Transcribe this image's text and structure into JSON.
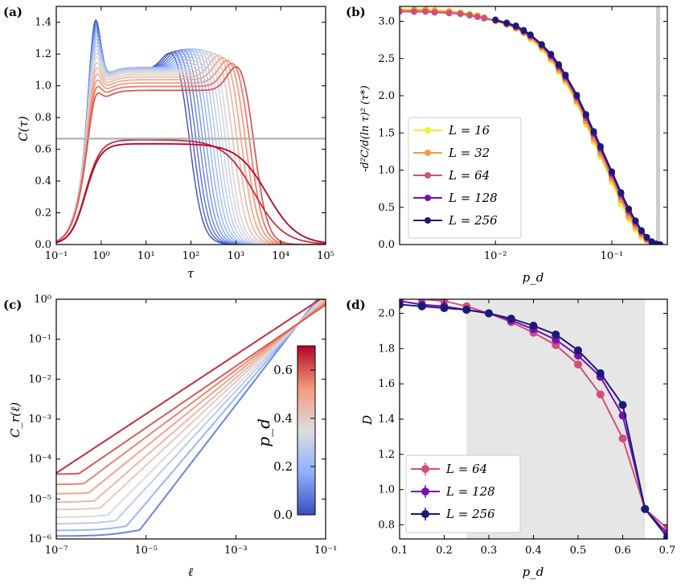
{
  "colors": {
    "yellow": "#f2ee3a",
    "orange": "#f39a47",
    "pink": "#cf4f7d",
    "purple": "#7a0fb0",
    "navy": "#1a1a7a",
    "gray_line": "#b0b0b0",
    "shade": "#e6e6e6"
  },
  "chart_data": [
    {
      "id": "a",
      "panel_label": "(a)",
      "type": "line",
      "xscale": "log",
      "xlim": [
        0.1,
        100000
      ],
      "ylim": [
        0.0,
        1.5
      ],
      "xlabel": "τ",
      "ylabel": "C(τ)",
      "xticks": [
        {
          "v": 0.1,
          "t": "10⁻¹"
        },
        {
          "v": 1,
          "t": "10⁰"
        },
        {
          "v": 10,
          "t": "10¹"
        },
        {
          "v": 100,
          "t": "10²"
        },
        {
          "v": 1000,
          "t": "10³"
        },
        {
          "v": 10000,
          "t": "10⁴"
        },
        {
          "v": 100000,
          "t": "10⁵"
        }
      ],
      "yticks": [
        {
          "v": 0.0,
          "t": "0.0"
        },
        {
          "v": 0.2,
          "t": "0.2"
        },
        {
          "v": 0.4,
          "t": "0.4"
        },
        {
          "v": 0.6,
          "t": "0.6"
        },
        {
          "v": 0.8,
          "t": "0.8"
        },
        {
          "v": 1.0,
          "t": "1.0"
        },
        {
          "v": 1.2,
          "t": "1.2"
        },
        {
          "v": 1.4,
          "t": "1.4"
        }
      ],
      "hline": 0.667,
      "series_pd": [
        0.0,
        0.03,
        0.06,
        0.09,
        0.12,
        0.15,
        0.18,
        0.21,
        0.24,
        0.27,
        0.3,
        0.33,
        0.36,
        0.4,
        0.44,
        0.48,
        0.52,
        0.56,
        0.6,
        0.65,
        0.7
      ]
    },
    {
      "id": "b",
      "panel_label": "(b)",
      "type": "line",
      "xscale": "log",
      "xlim": [
        0.0015,
        0.3
      ],
      "ylim": [
        0.0,
        3.2
      ],
      "xlabel": "p_d",
      "ylabel": "-d²C/d(ln τ)² (τ*)",
      "xticks": [
        {
          "v": 0.01,
          "t": "10⁻²"
        },
        {
          "v": 0.1,
          "t": "10⁻¹"
        }
      ],
      "yticks": [
        {
          "v": 0.0,
          "t": "0.0"
        },
        {
          "v": 0.5,
          "t": "0.5"
        },
        {
          "v": 1.0,
          "t": "1.0"
        },
        {
          "v": 1.5,
          "t": "1.5"
        },
        {
          "v": 2.0,
          "t": "2.0"
        },
        {
          "v": 2.5,
          "t": "2.5"
        },
        {
          "v": 3.0,
          "t": "3.0"
        }
      ],
      "shade_x": [
        0.24,
        0.26
      ],
      "legend": [
        "L = 16",
        "L = 32",
        "L = 64",
        "L = 128",
        "L = 256"
      ],
      "series": [
        {
          "name": "L = 16",
          "color": "#f2ee3a",
          "x": [
            0.0015,
            0.002,
            0.0025,
            0.003,
            0.004,
            0.005,
            0.006,
            0.007,
            0.008,
            0.01,
            0.0125,
            0.015,
            0.0175,
            0.02,
            0.025,
            0.03,
            0.035,
            0.04,
            0.05,
            0.06,
            0.07,
            0.08,
            0.1,
            0.12,
            0.14,
            0.16,
            0.18,
            0.2,
            0.22,
            0.24,
            0.26
          ],
          "y": [
            3.16,
            3.16,
            3.16,
            3.15,
            3.14,
            3.12,
            3.1,
            3.08,
            3.05,
            3.0,
            2.95,
            2.9,
            2.84,
            2.76,
            2.62,
            2.48,
            2.32,
            2.18,
            1.9,
            1.62,
            1.38,
            1.18,
            0.84,
            0.55,
            0.34,
            0.2,
            0.1,
            0.05,
            0.02,
            0.01,
            0.0
          ]
        },
        {
          "name": "L = 32",
          "color": "#f39a47",
          "x": [
            0.0015,
            0.002,
            0.0025,
            0.003,
            0.004,
            0.005,
            0.006,
            0.007,
            0.008,
            0.01,
            0.0125,
            0.015,
            0.0175,
            0.02,
            0.025,
            0.03,
            0.035,
            0.04,
            0.05,
            0.06,
            0.07,
            0.08,
            0.1,
            0.12,
            0.14,
            0.16,
            0.18,
            0.2,
            0.22,
            0.24,
            0.26
          ],
          "y": [
            3.15,
            3.15,
            3.15,
            3.14,
            3.13,
            3.11,
            3.09,
            3.07,
            3.05,
            3.01,
            2.96,
            2.91,
            2.85,
            2.78,
            2.65,
            2.5,
            2.35,
            2.21,
            1.93,
            1.66,
            1.42,
            1.22,
            0.88,
            0.6,
            0.38,
            0.24,
            0.13,
            0.06,
            0.02,
            0.01,
            0.0
          ]
        },
        {
          "name": "L = 64",
          "color": "#cf4f7d",
          "x": [
            0.0015,
            0.002,
            0.0025,
            0.003,
            0.004,
            0.005,
            0.006,
            0.007,
            0.008,
            0.01,
            0.0125,
            0.015,
            0.0175,
            0.02,
            0.025,
            0.03,
            0.035,
            0.04,
            0.05,
            0.06,
            0.07,
            0.08,
            0.1,
            0.12,
            0.14,
            0.16,
            0.18,
            0.2,
            0.22,
            0.24,
            0.26
          ],
          "y": [
            3.13,
            3.13,
            3.13,
            3.12,
            3.11,
            3.1,
            3.08,
            3.06,
            3.04,
            3.01,
            2.97,
            2.92,
            2.86,
            2.8,
            2.67,
            2.53,
            2.38,
            2.24,
            1.97,
            1.7,
            1.47,
            1.27,
            0.93,
            0.65,
            0.43,
            0.28,
            0.16,
            0.08,
            0.03,
            0.01,
            0.0
          ]
        },
        {
          "name": "L = 128",
          "color": "#7a0fb0",
          "x": [
            0.01,
            0.0125,
            0.015,
            0.0175,
            0.02,
            0.025,
            0.03,
            0.035,
            0.04,
            0.05,
            0.06,
            0.07,
            0.08,
            0.1,
            0.12,
            0.14,
            0.16,
            0.18,
            0.2,
            0.22,
            0.24,
            0.26
          ],
          "y": [
            3.02,
            2.97,
            2.93,
            2.87,
            2.81,
            2.68,
            2.54,
            2.4,
            2.26,
            1.99,
            1.73,
            1.5,
            1.3,
            0.96,
            0.68,
            0.46,
            0.31,
            0.18,
            0.09,
            0.04,
            0.01,
            0.0
          ]
        },
        {
          "name": "L = 256",
          "color": "#1a1a7a",
          "x": [
            0.01,
            0.0125,
            0.015,
            0.0175,
            0.02,
            0.025,
            0.03,
            0.035,
            0.04,
            0.05,
            0.06,
            0.07,
            0.08,
            0.1,
            0.12,
            0.14,
            0.16,
            0.18,
            0.2,
            0.22,
            0.24,
            0.26
          ],
          "y": [
            3.02,
            2.98,
            2.94,
            2.88,
            2.82,
            2.69,
            2.56,
            2.42,
            2.28,
            2.01,
            1.75,
            1.52,
            1.32,
            0.98,
            0.7,
            0.48,
            0.32,
            0.19,
            0.1,
            0.04,
            0.01,
            0.0
          ]
        }
      ]
    },
    {
      "id": "c",
      "panel_label": "(c)",
      "type": "line",
      "xscale": "log",
      "yscale": "log",
      "xlim": [
        1e-07,
        0.1
      ],
      "ylim": [
        1e-06,
        1.0
      ],
      "xlabel": "ℓ",
      "ylabel": "C_r(ℓ)",
      "xticks": [
        {
          "v": 1e-07,
          "t": "10⁻⁷"
        },
        {
          "v": 1e-05,
          "t": "10⁻⁵"
        },
        {
          "v": 0.001,
          "t": "10⁻³"
        },
        {
          "v": 0.1,
          "t": "10⁻¹"
        }
      ],
      "yticks": [
        {
          "v": 1e-06,
          "t": "10⁻⁶"
        },
        {
          "v": 1e-05,
          "t": "10⁻⁵"
        },
        {
          "v": 0.0001,
          "t": "10⁻⁴"
        },
        {
          "v": 0.001,
          "t": "10⁻³"
        },
        {
          "v": 0.01,
          "t": "10⁻²"
        },
        {
          "v": 0.1,
          "t": "10⁻¹"
        },
        {
          "v": 1,
          "t": "10⁰"
        }
      ],
      "colorbar": {
        "label": "p_d",
        "vmin": 0.0,
        "vmax": 0.7,
        "ticks": [
          {
            "v": 0.0,
            "t": "0.0"
          },
          {
            "v": 0.2,
            "t": "0.2"
          },
          {
            "v": 0.4,
            "t": "0.4"
          },
          {
            "v": 0.6,
            "t": "0.6"
          }
        ]
      },
      "series_pd": [
        0.1,
        0.2,
        0.28,
        0.34,
        0.4,
        0.45,
        0.5,
        0.55,
        0.6,
        0.65
      ]
    },
    {
      "id": "d",
      "panel_label": "(d)",
      "type": "line",
      "xlim": [
        0.1,
        0.7
      ],
      "ylim": [
        0.72,
        2.08
      ],
      "xlabel": "p_d",
      "ylabel": "D",
      "xticks": [
        {
          "v": 0.1,
          "t": "0.1"
        },
        {
          "v": 0.2,
          "t": "0.2"
        },
        {
          "v": 0.3,
          "t": "0.3"
        },
        {
          "v": 0.4,
          "t": "0.4"
        },
        {
          "v": 0.5,
          "t": "0.5"
        },
        {
          "v": 0.6,
          "t": "0.6"
        },
        {
          "v": 0.7,
          "t": "0.7"
        }
      ],
      "yticks": [
        {
          "v": 0.8,
          "t": "0.8"
        },
        {
          "v": 1.0,
          "t": "1.0"
        },
        {
          "v": 1.2,
          "t": "1.2"
        },
        {
          "v": 1.4,
          "t": "1.4"
        },
        {
          "v": 1.6,
          "t": "1.6"
        },
        {
          "v": 1.8,
          "t": "1.8"
        },
        {
          "v": 2.0,
          "t": "2.0"
        }
      ],
      "shade_x": [
        0.25,
        0.65
      ],
      "legend": [
        "L = 64",
        "L = 128",
        "L = 256"
      ],
      "series": [
        {
          "name": "L = 64",
          "color": "#cf4f7d",
          "x": [
            0.1,
            0.15,
            0.2,
            0.25,
            0.3,
            0.35,
            0.4,
            0.45,
            0.5,
            0.55,
            0.6,
            0.65,
            0.7
          ],
          "y": [
            2.09,
            2.08,
            2.07,
            2.04,
            2.0,
            1.95,
            1.89,
            1.82,
            1.71,
            1.54,
            1.29,
            0.89,
            0.78
          ]
        },
        {
          "name": "L = 128",
          "color": "#7a0fb0",
          "x": [
            0.1,
            0.15,
            0.2,
            0.25,
            0.3,
            0.35,
            0.4,
            0.45,
            0.5,
            0.55,
            0.6,
            0.65,
            0.7
          ],
          "y": [
            2.07,
            2.05,
            2.04,
            2.02,
            2.0,
            1.96,
            1.91,
            1.85,
            1.76,
            1.64,
            1.42,
            0.89,
            0.75
          ]
        },
        {
          "name": "L = 256",
          "color": "#1a1a7a",
          "x": [
            0.1,
            0.15,
            0.2,
            0.25,
            0.3,
            0.35,
            0.4,
            0.45,
            0.5,
            0.55,
            0.6,
            0.65,
            0.7
          ],
          "y": [
            2.05,
            2.04,
            2.03,
            2.02,
            2.0,
            1.97,
            1.93,
            1.88,
            1.79,
            1.66,
            1.48,
            0.89,
            0.73
          ]
        }
      ]
    }
  ]
}
